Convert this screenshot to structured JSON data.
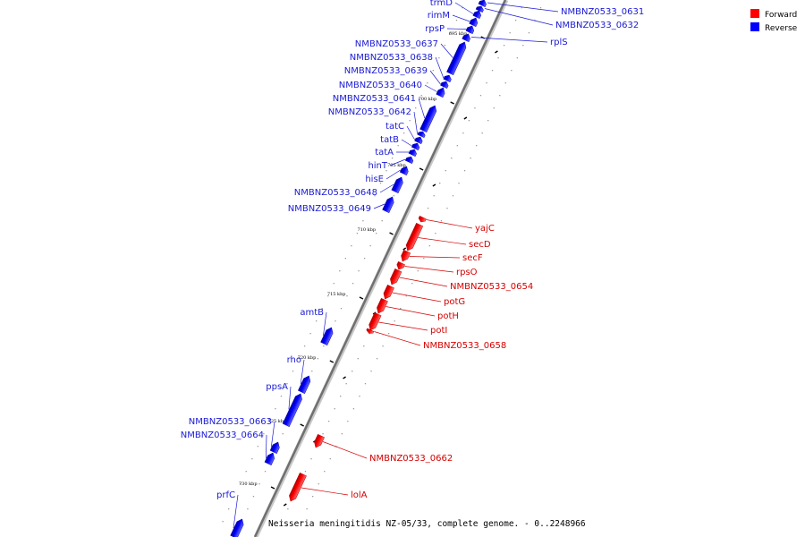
{
  "caption": "Neisseria meningitidis NZ-05/33, complete genome. - 0..2248966",
  "legend": [
    {
      "label": "Forward",
      "color": "#ff0000"
    },
    {
      "label": "Reverse",
      "color": "#0000ff"
    }
  ],
  "ticks": [
    "695 kbp",
    "700 kbp",
    "705 kbp",
    "710 kbp",
    "715 kbp",
    "720 kbp",
    "725 kbp",
    "730 kbp"
  ],
  "genes": [
    {
      "name": "trmD",
      "strand": "reverse",
      "side": "left"
    },
    {
      "name": "rimM",
      "strand": "reverse",
      "side": "left"
    },
    {
      "name": "rpsP",
      "strand": "reverse",
      "side": "left"
    },
    {
      "name": "NMBNZ0533_0631",
      "strand": "reverse",
      "side": "right"
    },
    {
      "name": "NMBNZ0533_0632",
      "strand": "reverse",
      "side": "right"
    },
    {
      "name": "rplS",
      "strand": "reverse",
      "side": "right"
    },
    {
      "name": "NMBNZ0533_0637",
      "strand": "reverse",
      "side": "left"
    },
    {
      "name": "NMBNZ0533_0638",
      "strand": "reverse",
      "side": "left"
    },
    {
      "name": "NMBNZ0533_0639",
      "strand": "reverse",
      "side": "left"
    },
    {
      "name": "NMBNZ0533_0640",
      "strand": "reverse",
      "side": "left"
    },
    {
      "name": "NMBNZ0533_0641",
      "strand": "reverse",
      "side": "left"
    },
    {
      "name": "NMBNZ0533_0642",
      "strand": "reverse",
      "side": "left"
    },
    {
      "name": "tatC",
      "strand": "reverse",
      "side": "left"
    },
    {
      "name": "tatB",
      "strand": "reverse",
      "side": "left"
    },
    {
      "name": "tatA",
      "strand": "reverse",
      "side": "left"
    },
    {
      "name": "hinT",
      "strand": "reverse",
      "side": "left"
    },
    {
      "name": "hisE",
      "strand": "reverse",
      "side": "left"
    },
    {
      "name": "NMBNZ0533_0648",
      "strand": "reverse",
      "side": "left"
    },
    {
      "name": "NMBNZ0533_0649",
      "strand": "reverse",
      "side": "left"
    },
    {
      "name": "yajC",
      "strand": "forward",
      "side": "right"
    },
    {
      "name": "secD",
      "strand": "forward",
      "side": "right"
    },
    {
      "name": "secF",
      "strand": "forward",
      "side": "right"
    },
    {
      "name": "rpsO",
      "strand": "forward",
      "side": "right"
    },
    {
      "name": "NMBNZ0533_0654",
      "strand": "forward",
      "side": "right"
    },
    {
      "name": "potG",
      "strand": "forward",
      "side": "right"
    },
    {
      "name": "potH",
      "strand": "forward",
      "side": "right"
    },
    {
      "name": "potI",
      "strand": "forward",
      "side": "right"
    },
    {
      "name": "NMBNZ0533_0658",
      "strand": "forward",
      "side": "right"
    },
    {
      "name": "amtB",
      "strand": "reverse",
      "side": "left"
    },
    {
      "name": "rho",
      "strand": "reverse",
      "side": "left"
    },
    {
      "name": "ppsA",
      "strand": "reverse",
      "side": "left"
    },
    {
      "name": "NMBNZ0533_0663",
      "strand": "reverse",
      "side": "left"
    },
    {
      "name": "NMBNZ0533_0664",
      "strand": "reverse",
      "side": "left"
    },
    {
      "name": "NMBNZ0533_0662",
      "strand": "forward",
      "side": "right"
    },
    {
      "name": "lolA",
      "strand": "forward",
      "side": "right"
    },
    {
      "name": "prfC",
      "strand": "reverse",
      "side": "left"
    }
  ]
}
